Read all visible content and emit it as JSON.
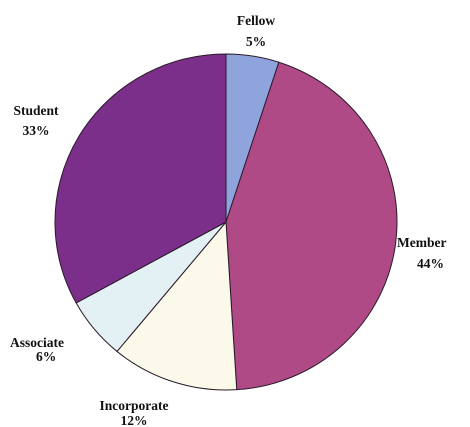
{
  "chart_data": {
    "type": "pie",
    "title": "",
    "slices": [
      {
        "label": "Fellow",
        "value": 5,
        "value_label": "5%",
        "color": "#8fa3dc"
      },
      {
        "label": "Member",
        "value": 44,
        "value_label": "44%",
        "color": "#b04a86"
      },
      {
        "label": "Incorporate",
        "value": 12,
        "value_label": "12%",
        "color": "#fbfaea"
      },
      {
        "label": "Associate",
        "value": 6,
        "value_label": "6%",
        "color": "#e3f1f5"
      },
      {
        "label": "Student",
        "value": 33,
        "value_label": "33%",
        "color": "#7c2f8a"
      }
    ],
    "start": "top",
    "direction": "clockwise",
    "legend": "none"
  }
}
